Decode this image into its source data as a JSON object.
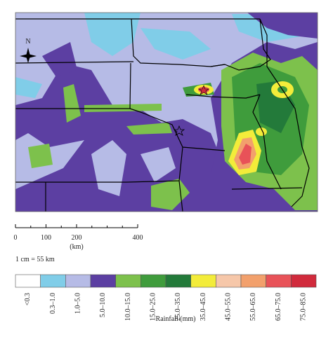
{
  "north_label": "N",
  "scale_bar": {
    "ticks": [
      0,
      100,
      200,
      400
    ],
    "unit": "(km)",
    "ratio": "1 cm = 55 km"
  },
  "legend": {
    "title": "Rainfall (mm)",
    "items": [
      {
        "label": "<0.3",
        "color": "#ffffff"
      },
      {
        "label": "0.3–1.0",
        "color": "#80cde8"
      },
      {
        "label": "1.0–5.0",
        "color": "#b6bbe6"
      },
      {
        "label": "5.0–10.0",
        "color": "#5c3fa2"
      },
      {
        "label": "10.0–15.0",
        "color": "#7dc14c"
      },
      {
        "label": "15.0–25.0",
        "color": "#3f9c3c"
      },
      {
        "label": "25.0–35.0",
        "color": "#237a3a"
      },
      {
        "label": "35.0–45.0",
        "color": "#f3ec3a"
      },
      {
        "label": "45.0–55.0",
        "color": "#f6c7a9"
      },
      {
        "label": "55.0–65.0",
        "color": "#f2a06c"
      },
      {
        "label": "65.0–75.0",
        "color": "#e85258"
      },
      {
        "label": "75.0–85.0",
        "color": "#d12a3c"
      }
    ]
  }
}
